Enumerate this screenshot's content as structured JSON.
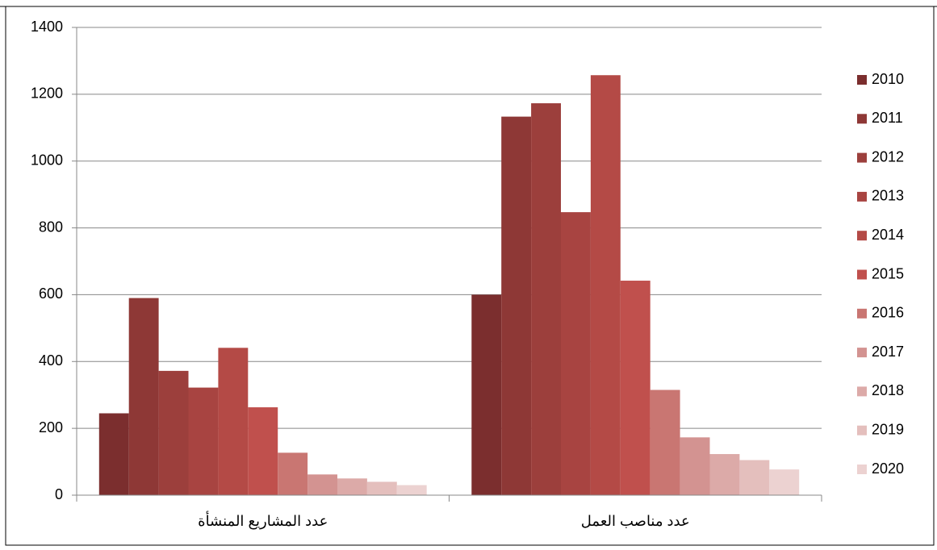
{
  "chart_data": {
    "type": "bar",
    "categories": [
      "عدد المشاريع المنشأة",
      "عدد مناصب العمل"
    ],
    "series": [
      {
        "name": "2010",
        "color": "#7b2e2e",
        "values": [
          245,
          600
        ]
      },
      {
        "name": "2011",
        "color": "#8e3836",
        "values": [
          590,
          1133
        ]
      },
      {
        "name": "2012",
        "color": "#9c3f3c",
        "values": [
          372,
          1173
        ]
      },
      {
        "name": "2013",
        "color": "#a84441",
        "values": [
          322,
          847
        ]
      },
      {
        "name": "2014",
        "color": "#b44a46",
        "values": [
          441,
          1257
        ]
      },
      {
        "name": "2015",
        "color": "#c0504d",
        "values": [
          263,
          642
        ]
      },
      {
        "name": "2016",
        "color": "#c97672",
        "values": [
          127,
          315
        ]
      },
      {
        "name": "2017",
        "color": "#d39391",
        "values": [
          62,
          173
        ]
      },
      {
        "name": "2018",
        "color": "#dcaaa8",
        "values": [
          50,
          123
        ]
      },
      {
        "name": "2019",
        "color": "#e4bfbd",
        "values": [
          40,
          105
        ]
      },
      {
        "name": "2020",
        "color": "#ecd2d1",
        "values": [
          30,
          77
        ]
      }
    ],
    "ylim": [
      0,
      1400
    ],
    "yticks": [
      0,
      200,
      400,
      600,
      800,
      1000,
      1200,
      1400
    ],
    "grid": true
  }
}
